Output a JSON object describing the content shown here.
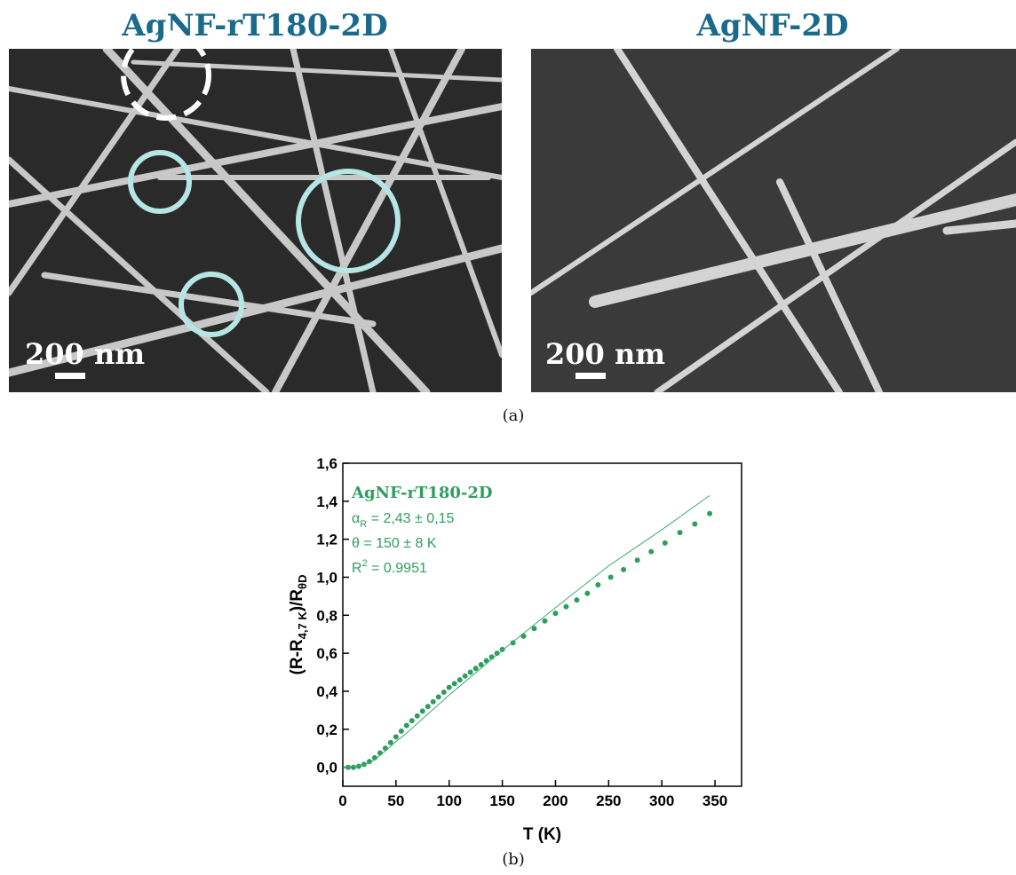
{
  "panels": [
    {
      "title": "AgNF-rT180-2D",
      "scale_label": "200 nm"
    },
    {
      "title": "AgNF-2D",
      "scale_label": "200 nm"
    }
  ],
  "caption_a": "(a)",
  "chart_data": {
    "type": "scatter",
    "annotation_title": "AgNF-rT180-2D",
    "annotation_lines": [
      [
        "α",
        "R",
        " = 2,43 ± 0,15"
      ],
      [
        "θ = 150 ± 8 K"
      ],
      [
        "R",
        "2",
        " = 0.9951"
      ]
    ],
    "xlabel": "T (K)",
    "ylabel_parts": [
      "(R-R",
      "4,7 K",
      ")/R",
      "θD"
    ],
    "xlim": [
      0,
      375
    ],
    "ylim": [
      -0.1,
      1.6
    ],
    "xticks": [
      0,
      50,
      100,
      150,
      200,
      250,
      300,
      350
    ],
    "yticks": [
      {
        "value": 0,
        "label": "0,0"
      },
      {
        "value": 0.2,
        "label": "0,2"
      },
      {
        "value": 0.4,
        "label": "0,4"
      },
      {
        "value": 0.6,
        "label": "0,6"
      },
      {
        "value": 0.8,
        "label": "0,8"
      },
      {
        "value": 1.0,
        "label": "1,0"
      },
      {
        "value": 1.2,
        "label": "1,2"
      },
      {
        "value": 1.4,
        "label": "1,4"
      },
      {
        "value": 1.6,
        "label": "1,6"
      }
    ],
    "series": [
      {
        "color": "#2e9e5e",
        "style": "markers",
        "x": [
          5,
          10,
          15,
          20,
          25,
          30,
          35,
          40,
          45,
          50,
          55,
          60,
          65,
          70,
          75,
          80,
          85,
          90,
          95,
          100,
          105,
          110,
          115,
          120,
          125,
          130,
          135,
          140,
          145,
          150,
          160,
          170,
          180,
          190,
          200,
          210,
          220,
          230,
          240,
          252,
          264,
          277,
          290,
          303,
          317,
          331,
          345
        ],
        "values": [
          0,
          0,
          0.005,
          0.015,
          0.03,
          0.05,
          0.075,
          0.1,
          0.13,
          0.16,
          0.19,
          0.22,
          0.245,
          0.27,
          0.295,
          0.32,
          0.345,
          0.37,
          0.395,
          0.42,
          0.44,
          0.46,
          0.48,
          0.5,
          0.52,
          0.54,
          0.56,
          0.58,
          0.6,
          0.62,
          0.655,
          0.69,
          0.73,
          0.77,
          0.81,
          0.845,
          0.88,
          0.915,
          0.96,
          1.0,
          1.04,
          1.09,
          1.135,
          1.18,
          1.235,
          1.28,
          1.335
        ]
      },
      {
        "color": "#3daa6e",
        "style": "line",
        "x": [
          0,
          20,
          30,
          40,
          50,
          60,
          80,
          100,
          150,
          200,
          250,
          300,
          345
        ],
        "values": [
          0,
          0.01,
          0.04,
          0.085,
          0.135,
          0.18,
          0.28,
          0.38,
          0.615,
          0.84,
          1.06,
          1.25,
          1.43
        ]
      }
    ]
  },
  "caption_b": "(b)"
}
